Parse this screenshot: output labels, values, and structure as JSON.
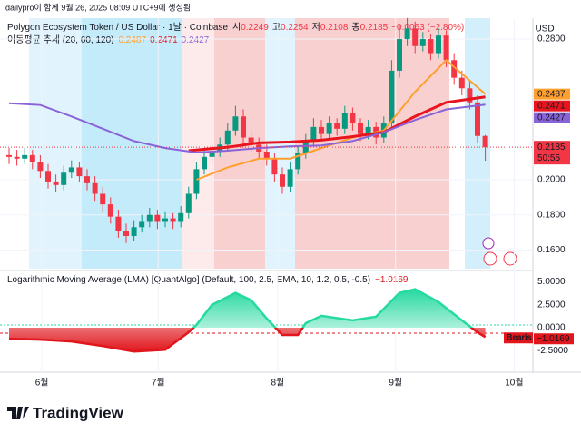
{
  "header": {
    "credit": "dailypro이 함께 9월 26, 2025 08:09 UTC+9에 생성됨",
    "symbol": "Polygon Ecosystem Token / US Dollar · 1날 · Coinbase",
    "o_label": "시",
    "o": "0.2249",
    "h_label": "고",
    "h": "0.2254",
    "l_label": "저",
    "l": "0.2108",
    "c_label": "종",
    "c": "0.2185",
    "change": "−0.0063 (−2.80%)",
    "ma_title": "이동평균 추세 (20, 60, 120)"
  },
  "chart_data": [
    {
      "type": "candlestick",
      "currency": "USD",
      "open": [
        0.214,
        0.213,
        0.212,
        0.214,
        0.21,
        0.205,
        0.199,
        0.197,
        0.204,
        0.207,
        0.202,
        0.198,
        0.192,
        0.186,
        0.179,
        0.171,
        0.168,
        0.173,
        0.176,
        0.18,
        0.176,
        0.178,
        0.176,
        0.181,
        0.192,
        0.206,
        0.213,
        0.216,
        0.22,
        0.228,
        0.236,
        0.224,
        0.22,
        0.216,
        0.212,
        0.203,
        0.196,
        0.206,
        0.215,
        0.222,
        0.23,
        0.226,
        0.232,
        0.229,
        0.238,
        0.232,
        0.226,
        0.23,
        0.224,
        0.232,
        0.262,
        0.28,
        0.286,
        0.276,
        0.28,
        0.272,
        0.282,
        0.268,
        0.258,
        0.252,
        0.244,
        0.2249
      ],
      "high": [
        0.218,
        0.217,
        0.218,
        0.217,
        0.214,
        0.209,
        0.203,
        0.208,
        0.211,
        0.21,
        0.206,
        0.202,
        0.196,
        0.19,
        0.183,
        0.175,
        0.177,
        0.18,
        0.184,
        0.183,
        0.182,
        0.181,
        0.185,
        0.196,
        0.21,
        0.217,
        0.22,
        0.224,
        0.232,
        0.242,
        0.24,
        0.228,
        0.224,
        0.22,
        0.215,
        0.207,
        0.21,
        0.219,
        0.226,
        0.235,
        0.234,
        0.236,
        0.235,
        0.242,
        0.241,
        0.235,
        0.234,
        0.233,
        0.236,
        0.268,
        0.288,
        0.292,
        0.29,
        0.284,
        0.283,
        0.286,
        0.285,
        0.272,
        0.262,
        0.256,
        0.248,
        0.2254
      ],
      "low": [
        0.209,
        0.208,
        0.209,
        0.206,
        0.201,
        0.195,
        0.193,
        0.194,
        0.201,
        0.199,
        0.194,
        0.188,
        0.182,
        0.175,
        0.167,
        0.164,
        0.165,
        0.17,
        0.173,
        0.172,
        0.173,
        0.172,
        0.173,
        0.178,
        0.189,
        0.203,
        0.21,
        0.213,
        0.217,
        0.225,
        0.22,
        0.216,
        0.212,
        0.208,
        0.199,
        0.192,
        0.193,
        0.203,
        0.212,
        0.219,
        0.222,
        0.223,
        0.225,
        0.226,
        0.228,
        0.222,
        0.223,
        0.22,
        0.221,
        0.229,
        0.258,
        0.276,
        0.272,
        0.273,
        0.268,
        0.269,
        0.264,
        0.254,
        0.248,
        0.24,
        0.221,
        0.2108
      ],
      "close": [
        0.213,
        0.212,
        0.214,
        0.21,
        0.205,
        0.199,
        0.197,
        0.204,
        0.207,
        0.202,
        0.198,
        0.192,
        0.186,
        0.179,
        0.171,
        0.168,
        0.173,
        0.176,
        0.18,
        0.176,
        0.178,
        0.176,
        0.181,
        0.192,
        0.206,
        0.213,
        0.216,
        0.22,
        0.228,
        0.236,
        0.224,
        0.22,
        0.216,
        0.212,
        0.203,
        0.196,
        0.206,
        0.215,
        0.222,
        0.23,
        0.226,
        0.232,
        0.229,
        0.238,
        0.232,
        0.226,
        0.23,
        0.224,
        0.232,
        0.262,
        0.28,
        0.286,
        0.276,
        0.28,
        0.272,
        0.282,
        0.268,
        0.258,
        0.252,
        0.244,
        0.2249,
        0.2185
      ],
      "up_color": "#089981",
      "down_color": "#f23645",
      "ylim": [
        0.1494,
        0.2919
      ],
      "yticks": [
        {
          "value": 0.16,
          "label": "0.1600"
        },
        {
          "value": 0.18,
          "label": "0.1800"
        },
        {
          "value": 0.2,
          "label": "0.2000"
        },
        {
          "value": 0.28,
          "label": "0.2800"
        }
      ],
      "xticks": [
        {
          "value": 4.2,
          "label": "6월"
        },
        {
          "value": 19.1,
          "label": "7월"
        },
        {
          "value": 34.4,
          "label": "8월"
        },
        {
          "value": 49.5,
          "label": "9월"
        },
        {
          "value": 64.7,
          "label": "10월"
        }
      ],
      "series": [
        {
          "color": "#ff9f2e",
          "x": [
            24,
            28,
            32,
            36,
            40,
            44,
            48,
            52,
            56,
            61
          ],
          "values": [
            0.2,
            0.207,
            0.212,
            0.212,
            0.218,
            0.224,
            0.228,
            0.25,
            0.268,
            0.2487
          ],
          "end_label": "0.2487"
        },
        {
          "color": "#e8141e",
          "x": [
            23,
            28,
            32,
            36,
            40,
            44,
            48,
            52,
            56,
            61
          ],
          "values": [
            0.2165,
            0.2185,
            0.221,
            0.2215,
            0.2225,
            0.2245,
            0.227,
            0.236,
            0.244,
            0.2471
          ],
          "end_label": "0.2471"
        },
        {
          "color": "#8a63d8",
          "x": [
            0,
            4,
            8,
            12,
            16,
            20,
            24,
            28,
            32,
            36,
            40,
            44,
            48,
            52,
            56,
            61
          ],
          "values": [
            0.2435,
            0.2425,
            0.236,
            0.229,
            0.222,
            0.218,
            0.2155,
            0.2165,
            0.218,
            0.219,
            0.2195,
            0.222,
            0.227,
            0.234,
            0.24,
            0.2427
          ],
          "end_label": "0.2427"
        }
      ],
      "last_price": {
        "value": 0.2185,
        "label": "0.2185"
      },
      "countdown": "50:55"
    },
    {
      "type": "line",
      "title": "Logarithmic Moving Average (LMA) [QuantAlgo] (Default, 100, 2.5, EMA, 10, 1.2, 0.5, -0.5)",
      "x": [
        0,
        4,
        8,
        12,
        16,
        20,
        23,
        24,
        26,
        29,
        31,
        33,
        35,
        37,
        38,
        40,
        44,
        47,
        50,
        52,
        55,
        58,
        60,
        61
      ],
      "values": [
        -1.2,
        -1.3,
        -1.5,
        -2.0,
        -2.6,
        -2.4,
        -0.5,
        0.3,
        2.5,
        3.8,
        3.0,
        1.0,
        -0.8,
        -0.8,
        0.5,
        1.3,
        0.8,
        1.2,
        3.8,
        4.2,
        2.8,
        0.8,
        -0.5,
        -1.0169
      ],
      "last": {
        "value": -1.0169,
        "label": "−1.0169"
      },
      "signal": "Bearis",
      "up_color": "#26d9a0",
      "down_color": "#e0161c",
      "ylim": [
        -4.36,
        6.04
      ],
      "yticks": [
        {
          "value": 5,
          "label": "5.0000"
        },
        {
          "value": 2.5,
          "label": "2.5000"
        },
        {
          "value": 0,
          "label": "0.0000"
        },
        {
          "value": -2.5,
          "label": "-2.5000"
        }
      ]
    }
  ],
  "footer": {
    "brand": "TradingView"
  }
}
